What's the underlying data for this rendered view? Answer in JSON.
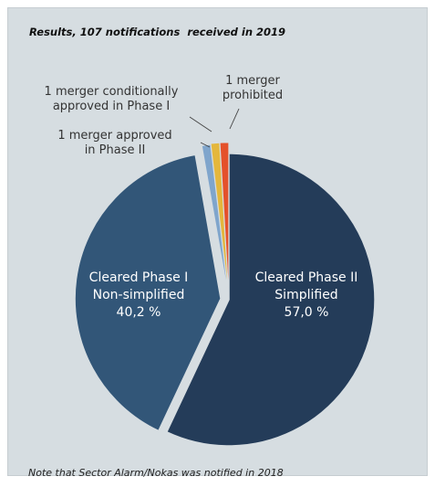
{
  "chart_data": {
    "type": "pie",
    "title": "Results, 107 notifications  received in 2019",
    "note": "Note that Sector Alarm/Nokas was notified in 2018",
    "slices": [
      {
        "label_lines": [
          "Cleared Phase II",
          "Simplified",
          "57,0 %"
        ],
        "value": 57.0,
        "color": "#243c59"
      },
      {
        "label_lines": [
          "Cleared Phase I",
          "Non-simplified",
          "40,2 %"
        ],
        "value": 40.2,
        "color": "#325678"
      },
      {
        "label_lines": [
          "1 merger approved",
          "in Phase II"
        ],
        "value": 0.93,
        "color": "#7fa5cc"
      },
      {
        "label_lines": [
          "1 merger conditionally",
          "approved in Phase I"
        ],
        "value": 0.93,
        "color": "#e4b73c"
      },
      {
        "label_lines": [
          "1 merger",
          "prohibited"
        ],
        "value": 0.93,
        "color": "#e4512b"
      }
    ]
  }
}
